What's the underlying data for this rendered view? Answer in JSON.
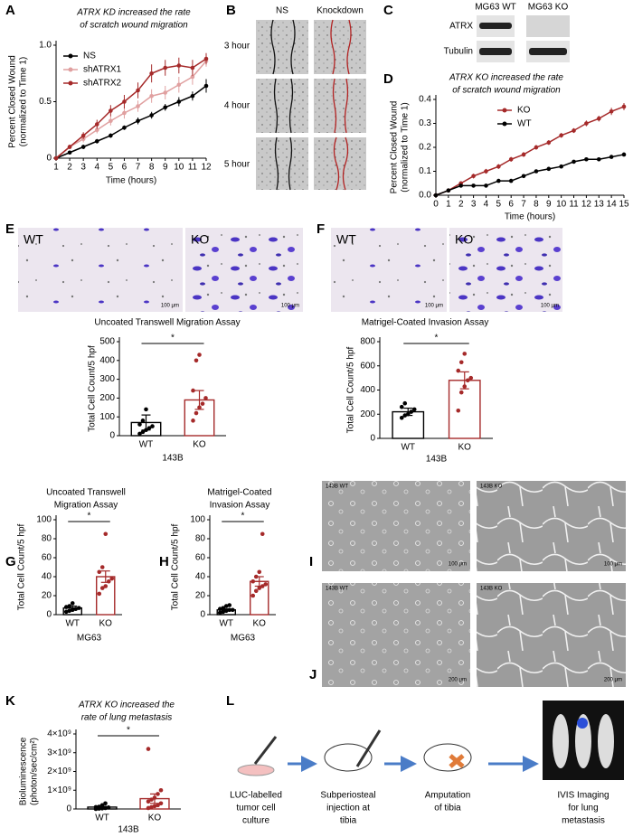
{
  "panel_labels": [
    "A",
    "B",
    "C",
    "D",
    "E",
    "F",
    "G",
    "H",
    "I",
    "J",
    "K",
    "L"
  ],
  "panel_b": {
    "columns": [
      "NS",
      "Knockdown"
    ],
    "rows": [
      "3 hour",
      "4 hour",
      "5 hour"
    ]
  },
  "panel_c": {
    "columns": [
      "MG63 WT",
      "MG63 KO"
    ],
    "rows": [
      "ATRX",
      "Tubulin"
    ]
  },
  "panel_e": {
    "images": [
      "WT",
      "KO"
    ],
    "scale_bars": [
      "100 μm",
      "100 μm"
    ]
  },
  "panel_f": {
    "images": [
      "WT",
      "KO"
    ],
    "scale_bars": [
      "100 μm",
      "100 μm"
    ]
  },
  "panel_i": {
    "images": [
      "143B WT",
      "143B KO"
    ],
    "scale_bars": [
      "100 μm",
      "100 μm"
    ]
  },
  "panel_j": {
    "images": [
      "143B WT",
      "143B KO"
    ],
    "scale_bars": [
      "200 μm",
      "200 μm"
    ]
  },
  "panel_l": {
    "steps": [
      [
        "LUC-labelled",
        "tumor cell",
        "culture"
      ],
      [
        "Subperiosteal",
        "injection at",
        "tibia"
      ],
      [
        "Amputation",
        "of tibia"
      ],
      [
        "IVIS Imaging",
        "for lung",
        "metastasis"
      ]
    ]
  },
  "chart_data": [
    {
      "type": "line",
      "title": [
        "ATRX KD increased the rate",
        "of scratch wound migration"
      ],
      "xlabel": "Time (hours)",
      "ylabel": [
        "Percent Closed Wound",
        "(normalized to Time 1)"
      ],
      "x": [
        1,
        2,
        3,
        4,
        5,
        6,
        7,
        8,
        9,
        10,
        11,
        12
      ],
      "xlim": [
        1,
        12
      ],
      "xticks": [
        1,
        2,
        3,
        4,
        5,
        6,
        7,
        8,
        9,
        10,
        11,
        12
      ],
      "ylim": [
        0,
        1
      ],
      "yticks": [
        0,
        0.5,
        {
          "value": 1,
          "label": "1.0"
        }
      ],
      "legend": "upper left",
      "series": [
        {
          "name": "NS",
          "color": "#000000",
          "values": [
            0,
            0.05,
            0.1,
            0.15,
            0.2,
            0.27,
            0.33,
            0.38,
            0.45,
            0.5,
            0.55,
            0.64
          ],
          "errors": [
            0,
            0.01,
            0.02,
            0.02,
            0.02,
            0.02,
            0.03,
            0.03,
            0.03,
            0.04,
            0.04,
            0.06
          ]
        },
        {
          "name": "shATRX1",
          "color": "#e0a0a0",
          "values": [
            0,
            0.1,
            0.17,
            0.25,
            0.33,
            0.4,
            0.46,
            0.55,
            0.58,
            0.65,
            0.72,
            0.86
          ],
          "errors": [
            0,
            0.02,
            0.03,
            0.03,
            0.04,
            0.05,
            0.05,
            0.06,
            0.06,
            0.07,
            0.07,
            0.05
          ]
        },
        {
          "name": "shATRX2",
          "color": "#a52a2a",
          "values": [
            0,
            0.1,
            0.2,
            0.3,
            0.42,
            0.5,
            0.6,
            0.75,
            0.8,
            0.82,
            0.8,
            0.88
          ],
          "errors": [
            0,
            0.02,
            0.03,
            0.04,
            0.05,
            0.06,
            0.07,
            0.08,
            0.07,
            0.07,
            0.07,
            0.05
          ]
        }
      ]
    },
    {
      "type": "line",
      "title": [
        "ATRX KO increased the rate",
        "of scratch wound migration"
      ],
      "xlabel": "Time (hours)",
      "ylabel": [
        "Percent Closed Wound",
        "(normalized to Time 1)"
      ],
      "x": [
        0,
        1,
        2,
        3,
        4,
        5,
        6,
        7,
        8,
        9,
        10,
        11,
        12,
        13,
        14,
        15
      ],
      "xlim": [
        0,
        15
      ],
      "xticks": [
        0,
        1,
        2,
        3,
        4,
        5,
        6,
        7,
        8,
        9,
        10,
        11,
        12,
        13,
        14,
        15
      ],
      "ylim": [
        0,
        0.4
      ],
      "yticks": [
        {
          "value": 0,
          "label": "0.0"
        },
        0.1,
        0.2,
        0.3,
        0.4
      ],
      "legend": "upper left",
      "series": [
        {
          "name": "KO",
          "color": "#a52a2a",
          "values": [
            0,
            0.02,
            0.05,
            0.08,
            0.1,
            0.12,
            0.15,
            0.17,
            0.2,
            0.22,
            0.25,
            0.27,
            0.3,
            0.32,
            0.35,
            0.37
          ],
          "errors": [
            0,
            0.005,
            0.008,
            0.01,
            0.01,
            0.01,
            0.01,
            0.01,
            0.01,
            0.01,
            0.01,
            0.01,
            0.012,
            0.012,
            0.015,
            0.015
          ]
        },
        {
          "name": "WT",
          "color": "#000000",
          "values": [
            0,
            0.02,
            0.04,
            0.04,
            0.04,
            0.06,
            0.06,
            0.08,
            0.1,
            0.11,
            0.12,
            0.14,
            0.15,
            0.15,
            0.16,
            0.17
          ],
          "errors": [
            0,
            0.005,
            0.005,
            0.005,
            0.005,
            0.005,
            0.005,
            0.006,
            0.006,
            0.006,
            0.006,
            0.006,
            0.007,
            0.007,
            0.007,
            0.008
          ]
        }
      ]
    },
    {
      "type": "bar",
      "title": [
        "Uncoated Transwell Migration Assay"
      ],
      "ylabel": [
        "Total Cell Count/5 hpf"
      ],
      "xlabel": "143B",
      "categories": [
        "WT",
        "KO"
      ],
      "colors": [
        "#000000",
        "#a52a2a"
      ],
      "values": [
        70,
        190
      ],
      "errors": [
        40,
        50
      ],
      "points": [
        [
          10,
          20,
          30,
          40,
          50,
          60,
          80,
          140
        ],
        [
          80,
          120,
          150,
          170,
          200,
          240,
          400,
          430
        ]
      ],
      "significance": "*",
      "ylim": [
        0,
        500
      ],
      "yticks": [
        0,
        100,
        200,
        300,
        400,
        500
      ]
    },
    {
      "type": "bar",
      "title": [
        "Matrigel-Coated Invasion Assay"
      ],
      "ylabel": [
        "Total Cell Count/5 hpf"
      ],
      "xlabel": "143B",
      "categories": [
        "WT",
        "KO"
      ],
      "colors": [
        "#000000",
        "#a52a2a"
      ],
      "values": [
        220,
        480
      ],
      "errors": [
        30,
        70
      ],
      "points": [
        [
          170,
          190,
          200,
          220,
          240,
          260,
          290
        ],
        [
          230,
          380,
          430,
          480,
          500,
          560,
          630,
          700
        ]
      ],
      "significance": "*",
      "ylim": [
        0,
        800
      ],
      "yticks": [
        0,
        200,
        400,
        600,
        800
      ]
    },
    {
      "type": "bar",
      "title": [
        "Uncoated Transwell",
        "Migration Assay"
      ],
      "ylabel": [
        "Total Cell Count/5 hpf"
      ],
      "xlabel": "MG63",
      "categories": [
        "WT",
        "KO"
      ],
      "colors": [
        "#000000",
        "#a52a2a"
      ],
      "values": [
        7,
        40
      ],
      "errors": [
        2,
        6
      ],
      "points": [
        [
          3,
          4,
          5,
          6,
          7,
          8,
          9,
          12
        ],
        [
          22,
          28,
          30,
          35,
          38,
          45,
          50,
          85
        ]
      ],
      "significance": "*",
      "ylim": [
        0,
        100
      ],
      "yticks": [
        0,
        20,
        40,
        60,
        80,
        100
      ]
    },
    {
      "type": "bar",
      "title": [
        "Matrigel-Coated",
        "Invasion Assay"
      ],
      "ylabel": [
        "Total Cell Count/5 hpf"
      ],
      "xlabel": "MG63",
      "categories": [
        "WT",
        "KO"
      ],
      "colors": [
        "#000000",
        "#a52a2a"
      ],
      "values": [
        5,
        35
      ],
      "errors": [
        1,
        5
      ],
      "points": [
        [
          2,
          3,
          4,
          5,
          5,
          6,
          7,
          9,
          10
        ],
        [
          20,
          25,
          28,
          30,
          32,
          35,
          40,
          45,
          85
        ]
      ],
      "significance": "*",
      "ylim": [
        0,
        100
      ],
      "yticks": [
        0,
        20,
        40,
        60,
        80,
        100
      ]
    },
    {
      "type": "bar",
      "title": [
        "ATRX KO increased the",
        "rate of lung metastasis"
      ],
      "ylabel": [
        "Bioluminescence",
        "(photon/sec/cm²)"
      ],
      "xlabel": "143B",
      "categories": [
        "WT",
        "KO"
      ],
      "colors": [
        "#000000",
        "#a52a2a"
      ],
      "values": [
        100000000,
        550000000
      ],
      "errors": [
        40000000,
        250000000
      ],
      "points": [
        [
          0,
          20000000,
          30000000,
          50000000,
          80000000,
          100000000,
          120000000,
          200000000,
          300000000
        ],
        [
          50000000,
          100000000,
          150000000,
          200000000,
          300000000,
          400000000,
          500000000,
          600000000,
          800000000,
          1000000000,
          3200000000
        ]
      ],
      "significance": "*",
      "ylim": [
        0,
        4000000000
      ],
      "yticks": [
        0,
        {
          "value": 1000000000,
          "label": "1×10⁹"
        },
        {
          "value": 2000000000,
          "label": "2×10⁹"
        },
        {
          "value": 3000000000,
          "label": "3×10⁹"
        },
        {
          "value": 4000000000,
          "label": "4×10⁹"
        }
      ]
    }
  ]
}
